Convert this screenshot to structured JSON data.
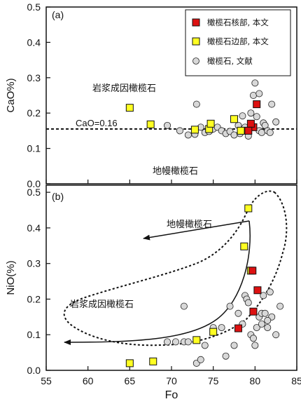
{
  "chart_data": [
    {
      "type": "scatter",
      "panel_label": "(a)",
      "ylabel": "CaO%)",
      "xlim": [
        55,
        85
      ],
      "ylim": [
        0,
        0.5
      ],
      "yticks": [
        "0.0",
        "0.1",
        "0.2",
        "0.3",
        "0.4",
        "0.5"
      ],
      "legend": {
        "placement": "top-right",
        "entries": [
          "橄榄石核部, 本文",
          "橄榄石边部, 本文",
          "橄榄石, 文献"
        ]
      },
      "reference_line": {
        "label": "CaO=0.16",
        "value": 0.155
      },
      "annotations": [
        "岩浆成因橄榄石",
        "地幔橄榄石"
      ],
      "series": [
        {
          "name": "橄榄石核部, 本文",
          "color": "#dd1111",
          "points": [
            [
              79.8,
              0.16
            ],
            [
              80.2,
              0.225
            ],
            [
              79.5,
              0.17
            ],
            [
              79.2,
              0.15
            ]
          ]
        },
        {
          "name": "橄榄石边部, 本文",
          "color": "#ffff22",
          "points": [
            [
              65.0,
              0.215
            ],
            [
              67.5,
              0.168
            ],
            [
              72.8,
              0.153
            ],
            [
              74.5,
              0.155
            ],
            [
              74.7,
              0.17
            ],
            [
              77.5,
              0.183
            ],
            [
              78.3,
              0.15
            ]
          ]
        },
        {
          "name": "橄榄石, 文献",
          "color": "#d8d8d8",
          "points": [
            [
              69.5,
              0.165
            ],
            [
              71.0,
              0.15
            ],
            [
              72.0,
              0.138
            ],
            [
              72.8,
              0.14
            ],
            [
              73.0,
              0.225
            ],
            [
              73.5,
              0.16
            ],
            [
              74.0,
              0.145
            ],
            [
              74.5,
              0.148
            ],
            [
              75.0,
              0.155
            ],
            [
              75.5,
              0.16
            ],
            [
              76.0,
              0.15
            ],
            [
              76.5,
              0.142
            ],
            [
              77.0,
              0.148
            ],
            [
              77.5,
              0.138
            ],
            [
              78.0,
              0.165
            ],
            [
              78.2,
              0.142
            ],
            [
              78.5,
              0.192
            ],
            [
              78.8,
              0.16
            ],
            [
              79.0,
              0.148
            ],
            [
              79.2,
              0.135
            ],
            [
              79.5,
              0.2
            ],
            [
              79.8,
              0.25
            ],
            [
              80.0,
              0.285
            ],
            [
              80.2,
              0.19
            ],
            [
              80.5,
              0.15
            ],
            [
              80.8,
              0.145
            ],
            [
              81.0,
              0.172
            ],
            [
              81.2,
              0.165
            ],
            [
              81.5,
              0.15
            ],
            [
              81.8,
              0.145
            ],
            [
              82.0,
              0.225
            ],
            [
              82.5,
              0.175
            ],
            [
              80.5,
              0.255
            ]
          ]
        }
      ]
    },
    {
      "type": "scatter",
      "panel_label": "(b)",
      "xlabel": "Fo",
      "ylabel": "NiO(%)",
      "xlim": [
        55,
        85
      ],
      "ylim": [
        0,
        0.52
      ],
      "xticks": [
        "55",
        "60",
        "65",
        "70",
        "75",
        "80",
        "85"
      ],
      "yticks": [
        "0.0",
        "0.1",
        "0.2",
        "0.3",
        "0.4",
        "0.5"
      ],
      "annotations": [
        "地幔橄榄石",
        "岩浆成因橄榄石"
      ],
      "series": [
        {
          "name": "橄榄石核部, 本文",
          "color": "#dd1111",
          "points": [
            [
              79.7,
              0.28
            ],
            [
              80.3,
              0.225
            ],
            [
              79.8,
              0.165
            ],
            [
              78.0,
              0.118
            ]
          ]
        },
        {
          "name": "橄榄石边部, 本文",
          "color": "#ffff22",
          "points": [
            [
              79.2,
              0.455
            ],
            [
              78.7,
              0.348
            ],
            [
              79.5,
              0.28
            ],
            [
              75.0,
              0.108
            ],
            [
              73.0,
              0.085
            ],
            [
              67.8,
              0.025
            ],
            [
              65.0,
              0.02
            ]
          ]
        },
        {
          "name": "橄榄石, 文献",
          "color": "#d8d8d8",
          "points": [
            [
              71.5,
              0.18
            ],
            [
              69.5,
              0.08
            ],
            [
              70.5,
              0.08
            ],
            [
              71.5,
              0.08
            ],
            [
              72.0,
              0.08
            ],
            [
              73.0,
              0.02
            ],
            [
              74.0,
              0.07
            ],
            [
              75.0,
              0.12
            ],
            [
              76.0,
              0.12
            ],
            [
              76.5,
              0.04
            ],
            [
              77.0,
              0.18
            ],
            [
              77.5,
              0.07
            ],
            [
              78.0,
              0.16
            ],
            [
              78.5,
              0.13
            ],
            [
              78.8,
              0.21
            ],
            [
              79.0,
              0.2
            ],
            [
              79.2,
              0.19
            ],
            [
              79.5,
              0.1
            ],
            [
              79.8,
              0.09
            ],
            [
              80.0,
              0.07
            ],
            [
              80.2,
              0.12
            ],
            [
              80.5,
              0.15
            ],
            [
              80.8,
              0.16
            ],
            [
              81.0,
              0.21
            ],
            [
              81.2,
              0.16
            ],
            [
              81.5,
              0.12
            ],
            [
              81.8,
              0.22
            ],
            [
              82.0,
              0.15
            ],
            [
              82.5,
              0.1
            ],
            [
              83.0,
              0.18
            ],
            [
              80.8,
              0.13
            ],
            [
              81.5,
              0.14
            ],
            [
              73.5,
              0.03
            ]
          ]
        }
      ]
    }
  ]
}
